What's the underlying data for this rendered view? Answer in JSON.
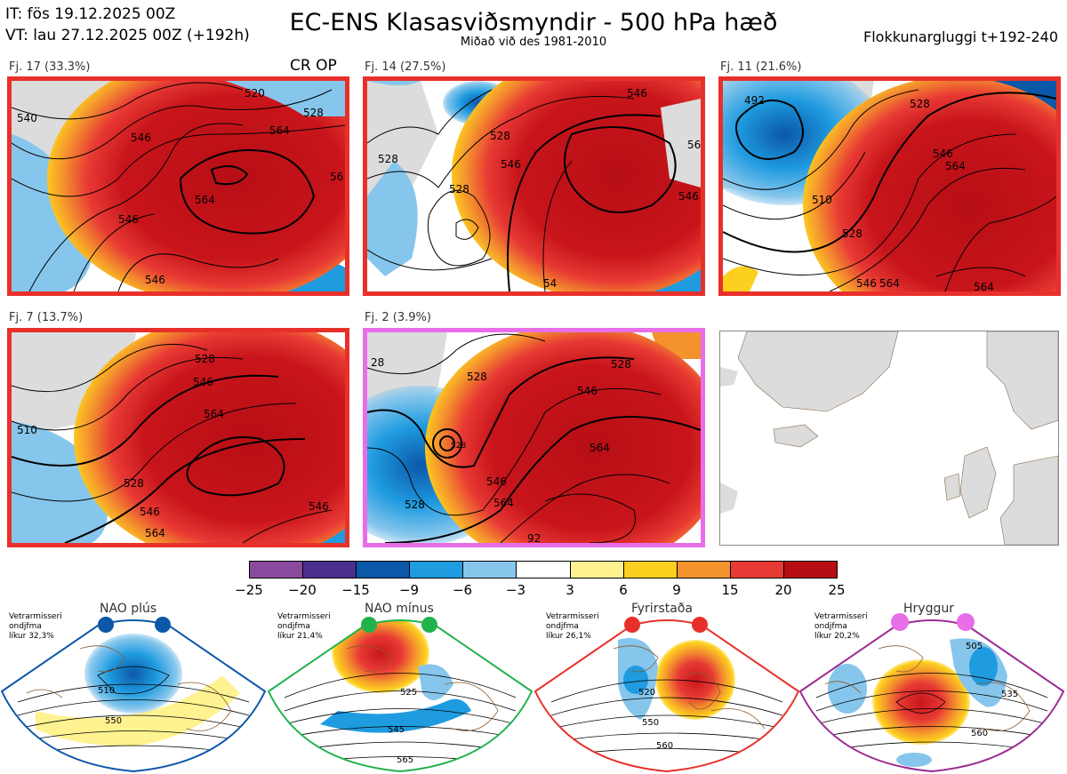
{
  "header": {
    "it_line": "IT: fös 19.12.2025 00Z",
    "vt_line": "VT: lau 27.12.2025 00Z  (+192h)",
    "title": "EC-ENS Klasasviðsmyndir - 500 hPa hæð",
    "subtitle": "Miðað við des 1981-2010",
    "window": "Flokkunargluggi t+192-240"
  },
  "clusters": [
    {
      "label": "Fj. 17 (33.3%)",
      "tag": "CR OP",
      "border_color": "#e8302a",
      "contours": [
        "520",
        "528",
        "546",
        "564",
        "56",
        "546",
        "540",
        "546",
        "564"
      ]
    },
    {
      "label": "Fj. 14 (27.5%)",
      "tag": "",
      "border_color": "#e8302a",
      "contours": [
        "528",
        "546",
        "56",
        "546",
        "528",
        "528",
        "54",
        "546"
      ]
    },
    {
      "label": "Fj. 11 (21.6%)",
      "tag": "",
      "border_color": "#e8302a",
      "contours": [
        "492",
        "528",
        "546",
        "564",
        "510",
        "528",
        "546",
        "564",
        "564"
      ]
    },
    {
      "label": "Fj. 7 (13.7%)",
      "tag": "",
      "border_color": "#e8302a",
      "contours": [
        "528",
        "546",
        "564",
        "510",
        "528",
        "546",
        "564",
        "546"
      ]
    },
    {
      "label": "Fj. 2 (3.9%)",
      "tag": "",
      "border_color": "#e86ee8",
      "contours": [
        "28",
        "528",
        "546",
        "564",
        "528",
        "528",
        "546",
        "564",
        "92",
        "528"
      ]
    }
  ],
  "colorbar": {
    "colors": [
      "#8a4b9e",
      "#4b2f8e",
      "#0b57a8",
      "#1f9be0",
      "#86c6ec",
      "#ffffff",
      "#fff291",
      "#fdd01f",
      "#f4932e",
      "#e83a34",
      "#b70e15"
    ],
    "ticks": [
      "−25",
      "−20",
      "−15",
      "−9",
      "−6",
      "−3",
      "3",
      "6",
      "9",
      "15",
      "20",
      "25"
    ]
  },
  "regimes": [
    {
      "title": "NAO plús",
      "info": [
        "Vetrarmisseri",
        "ondjfma",
        "líkur 32,3%"
      ],
      "dot_color": "#0b57a8",
      "border_color": "#0b57a8",
      "contours": [
        "510",
        "550"
      ]
    },
    {
      "title": "NAO mínus",
      "info": [
        "Vetrarmisseri",
        "ondjfma",
        "líkur 21,4%"
      ],
      "dot_color": "#22b24c",
      "border_color": "#22b24c",
      "contours": [
        "525",
        "545",
        "565"
      ]
    },
    {
      "title": "Fyrirstaða",
      "info": [
        "Vetrarmisseri",
        "ondjfma",
        "líkur 26,1%"
      ],
      "dot_color": "#e8302a",
      "border_color": "#e8302a",
      "contours": [
        "520",
        "550",
        "560"
      ]
    },
    {
      "title": "Hryggur",
      "info": [
        "Vetrarmisseri",
        "ondjfma",
        "líkur 20,2%"
      ],
      "dot_color": "#e86ee8",
      "border_color": "#9b2a92",
      "contours": [
        "505",
        "535",
        "560"
      ]
    }
  ]
}
